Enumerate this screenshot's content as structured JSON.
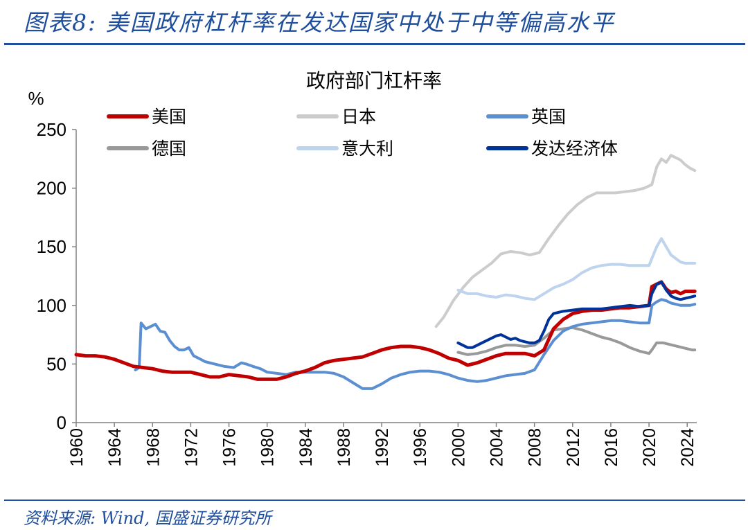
{
  "header": {
    "title": "图表8:  美国政府杠杆率在发达国家中处于中等偏高水平"
  },
  "footer": {
    "source": "资料来源:  Wind,  国盛证券研究所"
  },
  "chart_data": {
    "type": "line",
    "title": "政府部门杠杆率",
    "ylabel": "%",
    "xlabel": "",
    "ylim": [
      0,
      250
    ],
    "xlim": [
      1960,
      2025
    ],
    "yticks": [
      0,
      50,
      100,
      150,
      200,
      250
    ],
    "xticks": [
      "1960",
      "1964",
      "1968",
      "1972",
      "1976",
      "1980",
      "1984",
      "1988",
      "1992",
      "1996",
      "2000",
      "2004",
      "2008",
      "2012",
      "2016",
      "2020",
      "2024"
    ],
    "colors": {
      "us": "#c00000",
      "japan": "#cccccc",
      "uk": "#5b8fd1",
      "germany": "#999999",
      "italy": "#bdd3ee",
      "advanced": "#003399"
    },
    "legend": [
      "美国",
      "日本",
      "英国",
      "德国",
      "意大利",
      "发达经济体"
    ],
    "series": [
      {
        "key": "us",
        "name": "美国",
        "points": [
          [
            1960,
            58
          ],
          [
            1961,
            57
          ],
          [
            1962,
            57
          ],
          [
            1963,
            56
          ],
          [
            1964,
            54
          ],
          [
            1965,
            51
          ],
          [
            1966,
            48
          ],
          [
            1967,
            47
          ],
          [
            1968,
            46
          ],
          [
            1969,
            44
          ],
          [
            1970,
            43
          ],
          [
            1971,
            43
          ],
          [
            1972,
            43
          ],
          [
            1973,
            41
          ],
          [
            1974,
            39
          ],
          [
            1975,
            39
          ],
          [
            1976,
            41
          ],
          [
            1977,
            40
          ],
          [
            1978,
            39
          ],
          [
            1979,
            37
          ],
          [
            1980,
            37
          ],
          [
            1981,
            37
          ],
          [
            1982,
            39
          ],
          [
            1983,
            42
          ],
          [
            1984,
            44
          ],
          [
            1985,
            47
          ],
          [
            1986,
            51
          ],
          [
            1987,
            53
          ],
          [
            1988,
            54
          ],
          [
            1989,
            55
          ],
          [
            1990,
            56
          ],
          [
            1991,
            59
          ],
          [
            1992,
            62
          ],
          [
            1993,
            64
          ],
          [
            1994,
            65
          ],
          [
            1995,
            65
          ],
          [
            1996,
            64
          ],
          [
            1997,
            62
          ],
          [
            1998,
            59
          ],
          [
            1999,
            55
          ],
          [
            2000,
            53
          ],
          [
            2001,
            49
          ],
          [
            2002,
            51
          ],
          [
            2003,
            54
          ],
          [
            2004,
            57
          ],
          [
            2005,
            59
          ],
          [
            2006,
            59
          ],
          [
            2007,
            59
          ],
          [
            2008,
            57
          ],
          [
            2009,
            62
          ],
          [
            2010,
            80
          ],
          [
            2011,
            88
          ],
          [
            2012,
            93
          ],
          [
            2013,
            95
          ],
          [
            2014,
            96
          ],
          [
            2015,
            96
          ],
          [
            2016,
            97
          ],
          [
            2017,
            98
          ],
          [
            2018,
            98
          ],
          [
            2019,
            99
          ],
          [
            2020,
            100
          ],
          [
            2020.3,
            116
          ],
          [
            2020.8,
            118
          ],
          [
            2021.3,
            120
          ],
          [
            2021.8,
            114
          ],
          [
            2022.3,
            111
          ],
          [
            2022.8,
            112
          ],
          [
            2023.3,
            110
          ],
          [
            2023.8,
            112
          ],
          [
            2024.3,
            112
          ],
          [
            2024.8,
            112
          ]
        ]
      },
      {
        "key": "japan",
        "name": "日本",
        "points": [
          [
            1997.7,
            82
          ],
          [
            1998.5,
            90
          ],
          [
            1999.5,
            104
          ],
          [
            2000.5,
            115
          ],
          [
            2001.5,
            124
          ],
          [
            2002.5,
            130
          ],
          [
            2003.5,
            136
          ],
          [
            2004.5,
            144
          ],
          [
            2005.5,
            146
          ],
          [
            2006.5,
            145
          ],
          [
            2007.5,
            143
          ],
          [
            2008.5,
            145
          ],
          [
            2009.5,
            157
          ],
          [
            2010.5,
            168
          ],
          [
            2011.5,
            178
          ],
          [
            2012.5,
            186
          ],
          [
            2013.5,
            192
          ],
          [
            2014.5,
            196
          ],
          [
            2015.5,
            196
          ],
          [
            2016.5,
            196
          ],
          [
            2017.5,
            197
          ],
          [
            2018.5,
            198
          ],
          [
            2019.5,
            200
          ],
          [
            2020.3,
            203
          ],
          [
            2020.8,
            218
          ],
          [
            2021.3,
            225
          ],
          [
            2021.8,
            222
          ],
          [
            2022.3,
            228
          ],
          [
            2022.8,
            226
          ],
          [
            2023.3,
            224
          ],
          [
            2023.8,
            220
          ],
          [
            2024.3,
            217
          ],
          [
            2024.8,
            215
          ]
        ]
      },
      {
        "key": "uk",
        "name": "英国",
        "points": [
          [
            1966.2,
            45
          ],
          [
            1966.6,
            47
          ],
          [
            1966.8,
            85
          ],
          [
            1967.3,
            80
          ],
          [
            1967.8,
            82
          ],
          [
            1968.3,
            84
          ],
          [
            1968.8,
            78
          ],
          [
            1969.3,
            77
          ],
          [
            1969.8,
            70
          ],
          [
            1970.3,
            65
          ],
          [
            1970.8,
            62
          ],
          [
            1971.3,
            62
          ],
          [
            1971.8,
            64
          ],
          [
            1972.3,
            57
          ],
          [
            1972.8,
            55
          ],
          [
            1973.5,
            52
          ],
          [
            1974.5,
            50
          ],
          [
            1975.5,
            48
          ],
          [
            1976.5,
            47
          ],
          [
            1977.3,
            51
          ],
          [
            1977.8,
            50
          ],
          [
            1978.5,
            48
          ],
          [
            1979.3,
            46
          ],
          [
            1980,
            43
          ],
          [
            1981,
            42
          ],
          [
            1982,
            41
          ],
          [
            1983,
            43
          ],
          [
            1984,
            43
          ],
          [
            1985,
            43
          ],
          [
            1986,
            43
          ],
          [
            1987,
            42
          ],
          [
            1988,
            39
          ],
          [
            1989,
            34
          ],
          [
            1990,
            29
          ],
          [
            1991,
            29
          ],
          [
            1992,
            33
          ],
          [
            1993,
            38
          ],
          [
            1994,
            41
          ],
          [
            1995,
            43
          ],
          [
            1996,
            44
          ],
          [
            1997,
            44
          ],
          [
            1998,
            43
          ],
          [
            1999,
            41
          ],
          [
            2000,
            38
          ],
          [
            2001,
            36
          ],
          [
            2002,
            35
          ],
          [
            2003,
            36
          ],
          [
            2004,
            38
          ],
          [
            2005,
            40
          ],
          [
            2006,
            41
          ],
          [
            2007,
            42
          ],
          [
            2008,
            45
          ],
          [
            2009,
            58
          ],
          [
            2010,
            70
          ],
          [
            2011,
            78
          ],
          [
            2012,
            82
          ],
          [
            2013,
            84
          ],
          [
            2014,
            85
          ],
          [
            2015,
            86
          ],
          [
            2016,
            87
          ],
          [
            2017,
            87
          ],
          [
            2018,
            86
          ],
          [
            2019,
            85
          ],
          [
            2020,
            85
          ],
          [
            2020.3,
            100
          ],
          [
            2020.8,
            103
          ],
          [
            2021.3,
            105
          ],
          [
            2021.8,
            104
          ],
          [
            2022.3,
            102
          ],
          [
            2022.8,
            101
          ],
          [
            2023.3,
            100
          ],
          [
            2023.8,
            100
          ],
          [
            2024.3,
            100
          ],
          [
            2024.8,
            101
          ]
        ]
      },
      {
        "key": "germany",
        "name": "德国",
        "points": [
          [
            2000,
            60
          ],
          [
            2001,
            58
          ],
          [
            2002,
            59
          ],
          [
            2003,
            61
          ],
          [
            2004,
            64
          ],
          [
            2005,
            66
          ],
          [
            2006,
            66
          ],
          [
            2007,
            65
          ],
          [
            2008,
            66
          ],
          [
            2009,
            72
          ],
          [
            2010,
            79
          ],
          [
            2011,
            80
          ],
          [
            2012,
            81
          ],
          [
            2013,
            79
          ],
          [
            2014,
            76
          ],
          [
            2015,
            73
          ],
          [
            2016,
            71
          ],
          [
            2017,
            68
          ],
          [
            2018,
            64
          ],
          [
            2019,
            61
          ],
          [
            2020,
            59
          ],
          [
            2020.3,
            62
          ],
          [
            2020.8,
            68
          ],
          [
            2021.5,
            68
          ],
          [
            2022.5,
            66
          ],
          [
            2023.5,
            64
          ],
          [
            2024.5,
            62
          ],
          [
            2024.8,
            62
          ]
        ]
      },
      {
        "key": "italy",
        "name": "意大利",
        "points": [
          [
            2000,
            113
          ],
          [
            2001,
            110
          ],
          [
            2002,
            110
          ],
          [
            2003,
            108
          ],
          [
            2004,
            107
          ],
          [
            2005,
            109
          ],
          [
            2006,
            108
          ],
          [
            2007,
            106
          ],
          [
            2008,
            105
          ],
          [
            2009,
            110
          ],
          [
            2010,
            115
          ],
          [
            2011,
            118
          ],
          [
            2012,
            122
          ],
          [
            2013,
            128
          ],
          [
            2014,
            132
          ],
          [
            2015,
            134
          ],
          [
            2016,
            135
          ],
          [
            2017,
            135
          ],
          [
            2018,
            134
          ],
          [
            2019,
            134
          ],
          [
            2020,
            134
          ],
          [
            2020.3,
            140
          ],
          [
            2020.8,
            150
          ],
          [
            2021.3,
            157
          ],
          [
            2021.8,
            150
          ],
          [
            2022.3,
            143
          ],
          [
            2022.8,
            140
          ],
          [
            2023.3,
            137
          ],
          [
            2023.8,
            136
          ],
          [
            2024.3,
            136
          ],
          [
            2024.8,
            136
          ]
        ]
      },
      {
        "key": "advanced",
        "name": "发达经济体",
        "points": [
          [
            2000,
            68
          ],
          [
            2000.5,
            66
          ],
          [
            2001,
            64
          ],
          [
            2001.5,
            64
          ],
          [
            2002,
            66
          ],
          [
            2002.5,
            68
          ],
          [
            2003,
            70
          ],
          [
            2003.5,
            72
          ],
          [
            2004,
            74
          ],
          [
            2004.5,
            75
          ],
          [
            2005,
            73
          ],
          [
            2005.5,
            71
          ],
          [
            2006,
            72
          ],
          [
            2006.5,
            70
          ],
          [
            2007,
            69
          ],
          [
            2007.5,
            68
          ],
          [
            2008,
            68
          ],
          [
            2008.5,
            70
          ],
          [
            2009,
            78
          ],
          [
            2009.5,
            88
          ],
          [
            2010,
            93
          ],
          [
            2011,
            95
          ],
          [
            2012,
            96
          ],
          [
            2013,
            97
          ],
          [
            2014,
            97
          ],
          [
            2015,
            97
          ],
          [
            2016,
            98
          ],
          [
            2017,
            99
          ],
          [
            2018,
            100
          ],
          [
            2019,
            99
          ],
          [
            2020,
            100
          ],
          [
            2020.3,
            110
          ],
          [
            2020.8,
            118
          ],
          [
            2021.3,
            120
          ],
          [
            2021.8,
            113
          ],
          [
            2022.3,
            108
          ],
          [
            2022.8,
            106
          ],
          [
            2023.3,
            105
          ],
          [
            2023.8,
            106
          ],
          [
            2024.3,
            107
          ],
          [
            2024.8,
            108
          ]
        ]
      }
    ]
  }
}
